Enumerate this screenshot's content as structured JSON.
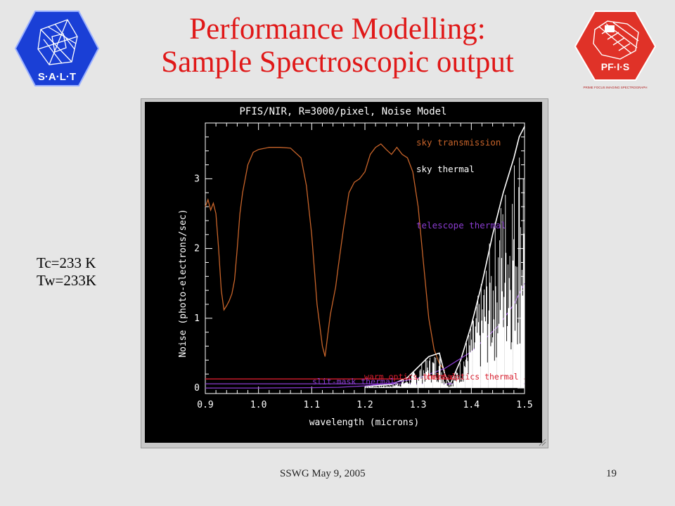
{
  "slide": {
    "title_line1": "Performance Modelling:",
    "title_line2": "Sample Spectroscopic output",
    "side_note_line1": "Tc=233 K",
    "side_note_line2": "Tw=233K",
    "footer_left": "SSWG  May 9, 2005",
    "footer_right": "19",
    "colors": {
      "title": "#e01818",
      "background": "#e6e6e6"
    }
  },
  "logos": {
    "left": {
      "text": "S·A·L·T",
      "color": "#1a3fd6"
    },
    "right": {
      "text": "PF·I·S",
      "subtext": "PRIME FOCUS IMAGING SPECTROGRAPH",
      "color": "#e03228"
    }
  },
  "chart_data": {
    "type": "line",
    "title": "PFIS/NIR, R=3000/pixel, Noise Model",
    "xlabel": "wavelength (microns)",
    "ylabel": "Noise (photo-electrons/sec)",
    "xlim": [
      0.9,
      1.5
    ],
    "ylim": [
      -0.08,
      3.8
    ],
    "x_ticks": [
      "0.9",
      "1.0",
      "1.1",
      "1.2",
      "1.3",
      "1.4",
      "1.5"
    ],
    "y_ticks": [
      "0",
      "1",
      "2",
      "3"
    ],
    "background": "#000000",
    "axis_color": "#ffffff",
    "legend": [
      {
        "label": "sky transmission",
        "color": "#c8642a"
      },
      {
        "label": "sky thermal",
        "color": "#ffffff"
      },
      {
        "label": "telescope thermal",
        "color": "#8a3cd0"
      }
    ],
    "annotations": [
      {
        "label": "warm optics thermal",
        "color": "#d81e2e"
      },
      {
        "label": "slit-mask thermal",
        "color": "#8a3cd0"
      },
      {
        "label": "cold optics thermal",
        "color": "#d81e2e"
      }
    ],
    "series": [
      {
        "name": "sky transmission",
        "color": "#c8642a",
        "x": [
          0.9,
          0.905,
          0.91,
          0.915,
          0.92,
          0.925,
          0.93,
          0.935,
          0.94,
          0.945,
          0.95,
          0.955,
          0.96,
          0.965,
          0.97,
          0.98,
          0.99,
          1.0,
          1.02,
          1.04,
          1.06,
          1.08,
          1.09,
          1.1,
          1.11,
          1.12,
          1.125,
          1.13,
          1.135,
          1.14,
          1.145,
          1.15,
          1.16,
          1.17,
          1.18,
          1.19,
          1.2,
          1.21,
          1.22,
          1.23,
          1.24,
          1.25,
          1.26,
          1.27,
          1.28,
          1.29,
          1.3,
          1.31,
          1.32,
          1.33,
          1.34,
          1.35
        ],
        "y": [
          2.6,
          2.7,
          2.55,
          2.65,
          2.5,
          2.0,
          1.4,
          1.12,
          1.18,
          1.25,
          1.35,
          1.55,
          2.0,
          2.5,
          2.8,
          3.2,
          3.38,
          3.42,
          3.45,
          3.45,
          3.44,
          3.3,
          2.9,
          2.2,
          1.2,
          0.6,
          0.45,
          0.75,
          1.05,
          1.25,
          1.45,
          1.75,
          2.3,
          2.8,
          2.95,
          3.0,
          3.1,
          3.35,
          3.45,
          3.5,
          3.42,
          3.35,
          3.45,
          3.35,
          3.3,
          3.1,
          2.6,
          1.8,
          1.0,
          0.55,
          0.35,
          0.25
        ]
      },
      {
        "name": "sky thermal",
        "color": "#ffffff",
        "x": [
          1.2,
          1.25,
          1.28,
          1.3,
          1.32,
          1.34,
          1.35,
          1.36,
          1.38,
          1.4,
          1.42,
          1.44,
          1.46,
          1.48,
          1.49,
          1.5
        ],
        "y": [
          0.02,
          0.05,
          0.15,
          0.3,
          0.45,
          0.5,
          0.2,
          0.05,
          0.4,
          0.9,
          1.5,
          2.2,
          2.8,
          3.3,
          3.6,
          3.75
        ]
      },
      {
        "name": "telescope thermal",
        "color": "#8a3cd0",
        "x": [
          0.9,
          1.0,
          1.1,
          1.15,
          1.2,
          1.25,
          1.3,
          1.35,
          1.4,
          1.45,
          1.48,
          1.5
        ],
        "y": [
          0.0,
          0.0,
          0.005,
          0.01,
          0.03,
          0.07,
          0.14,
          0.28,
          0.52,
          0.88,
          1.2,
          1.5
        ]
      },
      {
        "name": "warm optics thermal",
        "color": "#d81e2e",
        "x": [
          0.9,
          1.5
        ],
        "y": [
          0.13,
          0.13
        ]
      },
      {
        "name": "slit-mask thermal",
        "color": "#8a3cd0",
        "x": [
          0.9,
          1.5
        ],
        "y": [
          0.06,
          0.06
        ]
      }
    ]
  }
}
